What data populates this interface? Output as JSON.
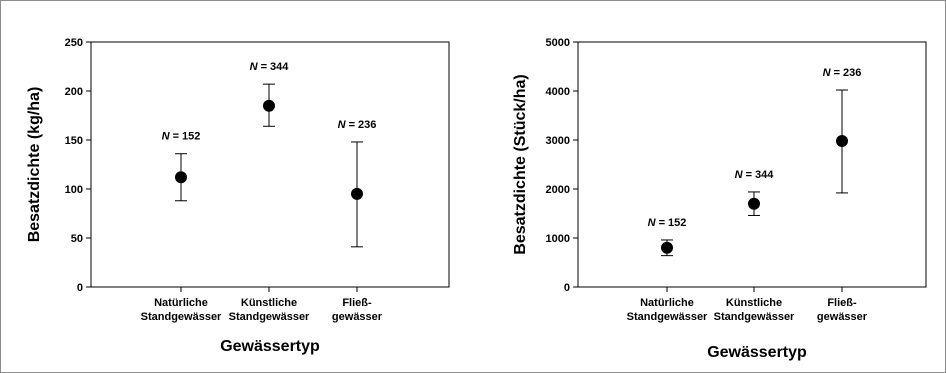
{
  "chart_data": [
    {
      "type": "scatter",
      "title": "",
      "xlabel": "Gewässertyp",
      "ylabel": "Besatzdichte (kg/ha)",
      "ylim": [
        0,
        250
      ],
      "yticks": [
        0,
        50,
        100,
        150,
        200,
        250
      ],
      "categories": [
        [
          "Natürliche",
          "Standgewässer"
        ],
        [
          "Künstliche",
          "Standgewässer"
        ],
        [
          "Fließ-",
          "gewässer"
        ]
      ],
      "series": [
        {
          "values": [
            112,
            185,
            95
          ],
          "error_low": [
            88,
            164,
            41
          ],
          "error_high": [
            136,
            207,
            148
          ]
        }
      ],
      "n_prefix": "N",
      "n_labels": [
        "= 152",
        "= 344",
        "= 236"
      ],
      "grid": false
    },
    {
      "type": "scatter",
      "title": "",
      "xlabel": "Gewässertyp",
      "ylabel": "Besatzdichte (Stück/ha)",
      "ylim": [
        0,
        5000
      ],
      "yticks": [
        0,
        1000,
        2000,
        3000,
        4000,
        5000
      ],
      "categories": [
        [
          "Natürliche",
          "Standgewässer"
        ],
        [
          "Künstliche",
          "Standgewässer"
        ],
        [
          "Fließ-",
          "gewässer"
        ]
      ],
      "series": [
        {
          "values": [
            800,
            1700,
            2980
          ],
          "error_low": [
            640,
            1460,
            1920
          ],
          "error_high": [
            960,
            1940,
            4020
          ]
        }
      ],
      "n_prefix": "N",
      "n_labels": [
        "= 152",
        "= 344",
        "= 236"
      ],
      "grid": false
    }
  ]
}
